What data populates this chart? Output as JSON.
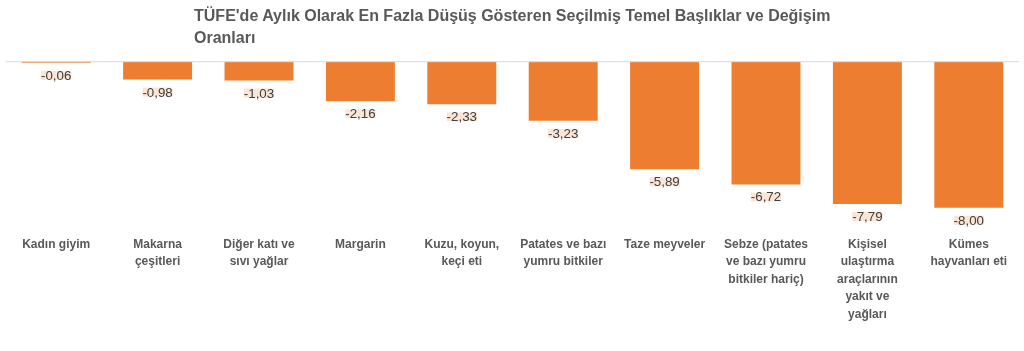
{
  "chart_data": {
    "type": "bar",
    "title": "TÜFE'de Aylık Olarak En Fazla Düşüş Gösteren Seçilmiş Temel Başlıklar ve Değişim Oranları",
    "categories": [
      "Kadın giyim",
      "Makarna çeşitleri",
      "Diğer katı ve sıvı yağlar",
      "Margarin",
      "Kuzu, koyun, keçi eti",
      "Patates ve bazı yumru bitkiler",
      "Taze meyveler",
      "Sebze (patates ve bazı yumru bitkiler hariç)",
      "Kişisel ulaştırma araçlarının yakıt ve yağları",
      "Kümes hayvanları eti"
    ],
    "values": [
      -0.06,
      -0.98,
      -1.03,
      -2.16,
      -2.33,
      -3.23,
      -5.89,
      -6.72,
      -7.79,
      -8.0
    ],
    "value_labels": [
      "-0,06",
      "-0,98",
      "-1,03",
      "-2,16",
      "-2,33",
      "-3,23",
      "-5,89",
      "-6,72",
      "-7,79",
      "-8,00"
    ],
    "color": "#ed7d31"
  }
}
